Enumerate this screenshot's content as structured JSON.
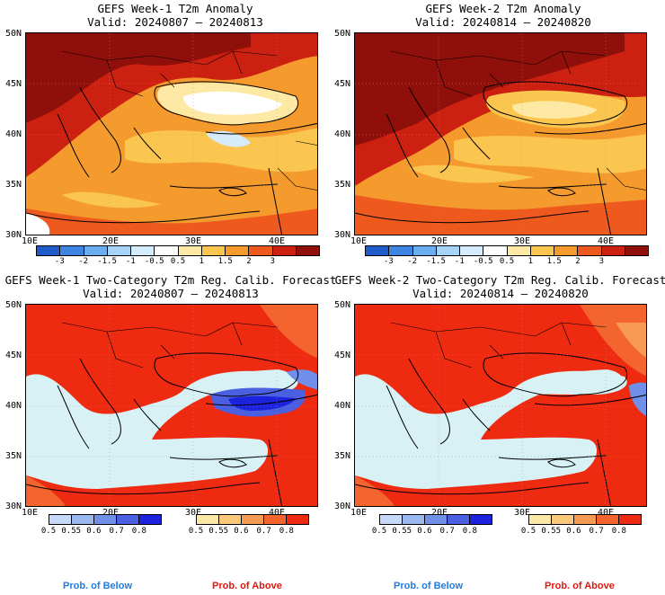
{
  "panels": {
    "anom1": {
      "title": "GEFS Week-1 T2m Anomaly",
      "valid": "Valid: 20240807 – 20240813"
    },
    "anom2": {
      "title": "GEFS Week-2 T2m Anomaly",
      "valid": "Valid: 20240814 – 20240820"
    },
    "prob1": {
      "title": "GEFS Week-1 Two-Category T2m Reg. Calib. Forecast",
      "valid": "Valid: 20240807 – 20240813"
    },
    "prob2": {
      "title": "GEFS Week-2 Two-Category T2m Reg. Calib. Forecast",
      "valid": "Valid: 20240814 – 20240820"
    }
  },
  "axes": {
    "lat_labels": [
      "50N",
      "45N",
      "40N",
      "35N",
      "30N"
    ],
    "lon_labels": [
      "10E",
      "20E",
      "30E",
      "40E"
    ]
  },
  "anomaly_colorbar": {
    "ticks": [
      "-3",
      "-2",
      "-1.5",
      "-1",
      "-0.5",
      "0.5",
      "1",
      "1.5",
      "2",
      "3"
    ],
    "colors": [
      "#1f5cc8",
      "#3d85e0",
      "#6aaef0",
      "#a7d3f7",
      "#d4ecfb",
      "#ffffff",
      "#fde9a3",
      "#fbc64f",
      "#f59a2d",
      "#ee5a1e",
      "#cc2111",
      "#8f0f0a"
    ]
  },
  "prob_colorbar": {
    "below": {
      "ticks": [
        "0.5",
        "0.55",
        "0.6",
        "0.7",
        "0.8"
      ],
      "colors": [
        "#c6d8f7",
        "#9bb8f0",
        "#6f8fe8",
        "#4a60e0",
        "#1d22dc"
      ],
      "label": "Prob. of Below"
    },
    "above": {
      "ticks": [
        "0.5",
        "0.55",
        "0.6",
        "0.7",
        "0.8"
      ],
      "colors": [
        "#fde7a6",
        "#fbc778",
        "#f79a53",
        "#f3642e",
        "#ee2a11"
      ],
      "label": "Prob. of Above"
    }
  },
  "colors": {
    "sea": "#d8f1f5",
    "prob_label_below": "#1e7de0",
    "prob_label_above": "#e0190e"
  }
}
